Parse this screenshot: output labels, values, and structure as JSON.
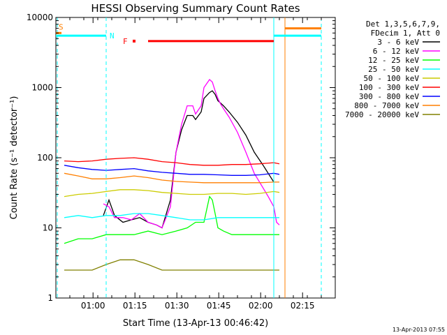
{
  "chart_data": {
    "type": "line",
    "title": "HESSI Observing Summary Count Rates",
    "xlabel": "Start Time (13-Apr-13 00:46:42)",
    "ylabel": "Count Rate (s⁻¹ detector⁻¹)",
    "x_unit": "minutes after 00:46:42",
    "xlim": [
      0,
      100
    ],
    "ylim": [
      1,
      10000
    ],
    "yscale": "log",
    "x_ticks": [
      "01:00",
      "01:15",
      "01:30",
      "01:45",
      "02:00",
      "02:15"
    ],
    "x_tick_values": [
      13.3,
      28.3,
      43.3,
      58.3,
      73.3,
      88.3
    ],
    "y_ticks": [
      "1",
      "10",
      "100",
      "1000",
      "10000"
    ],
    "y_tick_values": [
      1,
      10,
      100,
      1000,
      10000
    ],
    "legend": {
      "placement": "top-right outside",
      "header": [
        "Det 1,3,5,6,7,9,",
        "FDecim 1, Att 0"
      ],
      "entries": [
        "3 - 6 keV",
        "6 - 12 keV",
        "12 - 25 keV",
        "25 - 50 keV",
        "50 - 100 keV",
        "100 - 300 keV",
        "300 - 800 keV",
        "800 - 7000 keV",
        "7000 - 20000 keV"
      ]
    },
    "series": [
      {
        "name": "3 - 6 keV",
        "color": "#000000",
        "x": [
          17,
          19,
          21,
          24,
          27,
          30,
          33,
          36,
          38,
          41,
          43,
          45,
          47,
          49,
          50,
          52,
          53,
          55,
          56,
          57,
          58,
          59,
          60,
          62,
          65,
          68,
          71,
          74,
          76,
          78
        ],
        "y": [
          15,
          25,
          15,
          12,
          13,
          14,
          12,
          11,
          10,
          25,
          120,
          250,
          400,
          400,
          350,
          450,
          700,
          850,
          900,
          800,
          650,
          600,
          550,
          450,
          320,
          210,
          120,
          80,
          60,
          45
        ]
      },
      {
        "name": "6 - 12 keV",
        "color": "#ff00ff",
        "x": [
          17,
          19,
          21,
          24,
          27,
          30,
          33,
          36,
          38,
          41,
          43,
          45,
          47,
          49,
          50,
          52,
          53,
          55,
          56,
          57,
          58,
          59,
          60,
          62,
          65,
          68,
          71,
          74,
          76,
          78,
          79,
          80
        ],
        "y": [
          22,
          20,
          14,
          14,
          13,
          16,
          12,
          11,
          10,
          20,
          120,
          300,
          550,
          550,
          420,
          550,
          1000,
          1300,
          1200,
          900,
          700,
          580,
          500,
          380,
          230,
          120,
          60,
          38,
          28,
          20,
          12,
          11
        ]
      },
      {
        "name": "12 - 25 keV",
        "color": "#00ff00",
        "x": [
          3,
          8,
          13,
          18,
          23,
          28,
          33,
          38,
          43,
          47,
          50,
          53,
          55,
          56,
          57,
          58,
          60,
          63,
          68,
          73,
          78,
          80
        ],
        "y": [
          6,
          7,
          7,
          8,
          8,
          8,
          9,
          8,
          9,
          10,
          12,
          12,
          28,
          25,
          16,
          10,
          9,
          8,
          8,
          8,
          8,
          8
        ]
      },
      {
        "name": "25 - 50 keV",
        "color": "#00ffff",
        "x": [
          3,
          8,
          13,
          18,
          23,
          28,
          33,
          38,
          43,
          48,
          53,
          58,
          63,
          68,
          73,
          78,
          80
        ],
        "y": [
          14,
          15,
          14,
          15,
          15,
          16,
          16,
          15,
          14,
          13,
          13,
          14,
          14,
          14,
          14,
          14,
          14
        ]
      },
      {
        "name": "50 - 100 keV",
        "color": "#cccc00",
        "x": [
          3,
          8,
          13,
          18,
          23,
          28,
          33,
          38,
          43,
          48,
          53,
          58,
          63,
          68,
          73,
          78,
          80
        ],
        "y": [
          28,
          30,
          31,
          33,
          35,
          35,
          34,
          32,
          31,
          30,
          30,
          31,
          31,
          30,
          31,
          33,
          32
        ]
      },
      {
        "name": "100 - 300 keV",
        "color": "#ff0000",
        "x": [
          3,
          8,
          13,
          18,
          23,
          28,
          33,
          38,
          43,
          48,
          53,
          58,
          63,
          68,
          73,
          78,
          80
        ],
        "y": [
          90,
          88,
          90,
          95,
          98,
          100,
          95,
          88,
          85,
          80,
          78,
          78,
          80,
          80,
          82,
          85,
          82
        ]
      },
      {
        "name": "300 - 800 keV",
        "color": "#0000ff",
        "x": [
          3,
          8,
          13,
          18,
          23,
          28,
          33,
          38,
          43,
          48,
          53,
          58,
          63,
          68,
          73,
          78,
          80
        ],
        "y": [
          78,
          72,
          68,
          66,
          68,
          70,
          65,
          62,
          60,
          58,
          58,
          57,
          56,
          56,
          57,
          60,
          58
        ]
      },
      {
        "name": "800 - 7000 keV",
        "color": "#ff7f00",
        "x": [
          3,
          8,
          13,
          18,
          23,
          28,
          33,
          38,
          43,
          48,
          53,
          58,
          63,
          68,
          73,
          78,
          80
        ],
        "y": [
          60,
          55,
          50,
          50,
          52,
          55,
          52,
          48,
          46,
          45,
          44,
          44,
          44,
          44,
          44,
          45,
          45
        ]
      },
      {
        "name": "7000 - 20000 keV",
        "color": "#808000",
        "x": [
          3,
          8,
          13,
          18,
          23,
          28,
          33,
          38,
          43,
          48,
          53,
          58,
          63,
          68,
          73,
          78,
          80
        ],
        "y": [
          2.5,
          2.5,
          2.5,
          3,
          3.5,
          3.5,
          3,
          2.5,
          2.5,
          2.5,
          2.5,
          2.5,
          2.5,
          2.5,
          2.5,
          2.5,
          2.5
        ]
      }
    ],
    "state_bars": [
      {
        "label": "S",
        "color": "#ff7f00",
        "y": 6000,
        "x_start": 0,
        "x_end": 2
      },
      {
        "label": "S",
        "color": "#ff7f00",
        "y": 7000,
        "x_start": 82,
        "x_end": 95
      },
      {
        "label": "N",
        "color": "#00ffff",
        "y": 5500,
        "x_start": 0,
        "x_end": 18
      },
      {
        "label": "N",
        "color": "#00ffff",
        "y": 5500,
        "x_start": 78,
        "x_end": 95
      },
      {
        "label": "F",
        "color": "#ff0000",
        "y": 4600,
        "x_start": 33,
        "x_end": 78
      }
    ],
    "vertical_markers": [
      {
        "color": "#00ffff",
        "x": 0.5,
        "style": "dashed"
      },
      {
        "color": "#00ffff",
        "x": 18,
        "style": "dashed"
      },
      {
        "color": "#00ffff",
        "x": 78,
        "style": "solid"
      },
      {
        "color": "#ff7f00",
        "x": 82,
        "style": "solid"
      },
      {
        "color": "#00ffff",
        "x": 95,
        "style": "dashed"
      }
    ],
    "grid": false
  },
  "timestamp": "13-Apr-2013 07:55"
}
